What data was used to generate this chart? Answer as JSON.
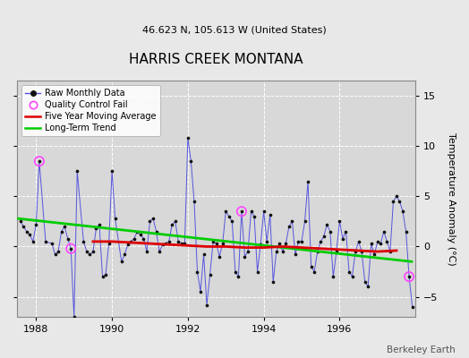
{
  "title": "HARRIS CREEK MONTANA",
  "subtitle": "46.623 N, 105.613 W (United States)",
  "ylabel": "Temperature Anomaly (°C)",
  "credit": "Berkeley Earth",
  "fig_facecolor": "#e8e8e8",
  "plot_bg_color": "#d8d8d8",
  "xlim": [
    1987.5,
    1998.0
  ],
  "ylim": [
    -7.0,
    16.5
  ],
  "yticks": [
    -5,
    0,
    5,
    10,
    15
  ],
  "xticks": [
    1988,
    1990,
    1992,
    1994,
    1996
  ],
  "raw_color": "#5555dd",
  "marker_color": "#111111",
  "qc_color": "#ff44ff",
  "moving_avg_color": "#dd0000",
  "trend_color": "#00cc00",
  "raw_data_x": [
    1987.583,
    1987.667,
    1987.75,
    1987.833,
    1987.917,
    1988.0,
    1988.083,
    1988.25,
    1988.417,
    1988.5,
    1988.583,
    1988.667,
    1988.75,
    1988.833,
    1988.917,
    1989.0,
    1989.083,
    1989.25,
    1989.333,
    1989.417,
    1989.5,
    1989.583,
    1989.667,
    1989.75,
    1989.833,
    1989.917,
    1990.0,
    1990.083,
    1990.25,
    1990.333,
    1990.417,
    1990.5,
    1990.583,
    1990.667,
    1990.75,
    1990.833,
    1990.917,
    1991.0,
    1991.083,
    1991.167,
    1991.25,
    1991.333,
    1991.417,
    1991.5,
    1991.583,
    1991.667,
    1991.75,
    1991.833,
    1991.917,
    1992.0,
    1992.083,
    1992.167,
    1992.25,
    1992.333,
    1992.417,
    1992.5,
    1992.583,
    1992.667,
    1992.75,
    1992.833,
    1992.917,
    1993.0,
    1993.083,
    1993.167,
    1993.25,
    1993.333,
    1993.417,
    1993.5,
    1993.583,
    1993.667,
    1993.75,
    1993.833,
    1993.917,
    1994.0,
    1994.083,
    1994.167,
    1994.25,
    1994.333,
    1994.417,
    1994.5,
    1994.583,
    1994.667,
    1994.75,
    1994.833,
    1994.917,
    1995.0,
    1995.083,
    1995.167,
    1995.25,
    1995.333,
    1995.417,
    1995.5,
    1995.583,
    1995.667,
    1995.75,
    1995.833,
    1995.917,
    1996.0,
    1996.083,
    1996.167,
    1996.25,
    1996.333,
    1996.417,
    1996.5,
    1996.583,
    1996.667,
    1996.75,
    1996.833,
    1996.917,
    1997.0,
    1997.083,
    1997.167,
    1997.25,
    1997.333,
    1997.417,
    1997.5,
    1997.583,
    1997.667,
    1997.75,
    1997.833,
    1997.917
  ],
  "raw_data_y": [
    2.5,
    2.0,
    1.5,
    1.2,
    0.5,
    2.2,
    8.5,
    0.5,
    0.3,
    -0.8,
    -0.5,
    1.5,
    2.0,
    0.8,
    -0.2,
    -7.0,
    7.5,
    0.5,
    -0.5,
    -0.8,
    -0.5,
    1.8,
    2.2,
    -3.0,
    -2.8,
    0.3,
    7.5,
    2.8,
    -1.5,
    -0.8,
    0.2,
    0.5,
    0.8,
    1.5,
    1.2,
    0.8,
    -0.5,
    2.5,
    2.8,
    1.5,
    -0.5,
    0.2,
    0.3,
    0.5,
    2.2,
    2.5,
    0.5,
    0.3,
    0.3,
    10.8,
    8.5,
    4.5,
    -2.5,
    -4.5,
    -0.8,
    -5.8,
    -2.8,
    0.5,
    0.3,
    -1.0,
    0.3,
    3.5,
    3.0,
    2.5,
    -2.5,
    -3.0,
    3.5,
    -1.0,
    -0.5,
    3.5,
    3.0,
    -2.5,
    0.2,
    3.5,
    0.5,
    3.2,
    -3.5,
    -0.5,
    0.3,
    -0.5,
    0.3,
    2.0,
    2.5,
    -0.8,
    0.5,
    0.5,
    2.5,
    6.5,
    -2.0,
    -2.5,
    -0.5,
    0.5,
    1.0,
    2.2,
    1.5,
    -3.0,
    -0.5,
    2.5,
    0.8,
    1.5,
    -2.5,
    -3.0,
    -0.5,
    0.5,
    -0.5,
    -3.5,
    -4.0,
    0.3,
    -0.8,
    0.5,
    0.3,
    1.5,
    0.5,
    -0.5,
    4.5,
    5.0,
    4.5,
    3.5,
    1.5,
    -3.0,
    -6.0
  ],
  "qc_points_x": [
    1988.083,
    1988.917,
    1993.417,
    1997.833
  ],
  "qc_points_y": [
    8.5,
    -0.2,
    3.5,
    -3.0
  ],
  "trend_x": [
    1987.5,
    1997.9
  ],
  "trend_y": [
    2.8,
    -1.5
  ],
  "moving_avg_x": [
    1989.5,
    1990.0,
    1990.5,
    1991.0,
    1991.5,
    1992.0,
    1992.5,
    1993.0,
    1993.5,
    1994.0,
    1994.5,
    1995.0,
    1995.5,
    1996.0,
    1996.5,
    1997.0,
    1997.5
  ],
  "moving_avg_y": [
    0.5,
    0.5,
    0.4,
    0.3,
    0.2,
    0.1,
    0.0,
    0.0,
    -0.1,
    -0.1,
    0.0,
    -0.1,
    -0.2,
    -0.3,
    -0.4,
    -0.5,
    -0.4
  ]
}
